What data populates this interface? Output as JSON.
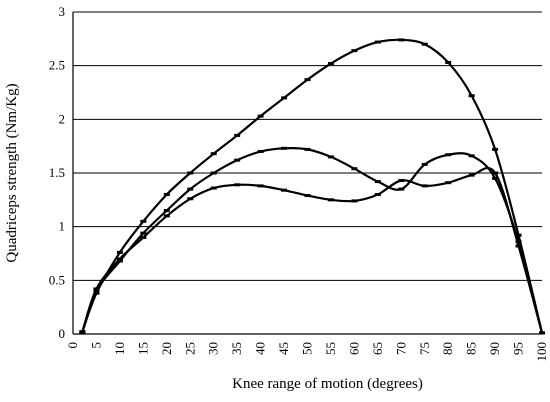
{
  "chart_data": {
    "type": "line",
    "title": "",
    "xlabel": "Knee range of motion (degrees)",
    "ylabel": "Quadriceps strength (Nm/Kg)",
    "xlim": [
      0,
      100
    ],
    "ylim": [
      0,
      3
    ],
    "grid": "horizontal",
    "x_ticks": [
      "0",
      "5",
      "10",
      "15",
      "20",
      "25",
      "30",
      "35",
      "40",
      "45",
      "50",
      "55",
      "60",
      "65",
      "70",
      "75",
      "80",
      "85",
      "90",
      "95",
      "100"
    ],
    "y_ticks": [
      "0",
      "0.5",
      "1",
      "1.5",
      "2",
      "2.5",
      "3"
    ],
    "series": [
      {
        "points": [
          [
            2,
            0.02
          ],
          [
            5,
            0.38
          ],
          [
            10,
            0.76
          ],
          [
            15,
            1.05
          ],
          [
            20,
            1.3
          ],
          [
            25,
            1.5
          ],
          [
            30,
            1.68
          ],
          [
            35,
            1.85
          ],
          [
            40,
            2.03
          ],
          [
            45,
            2.2
          ],
          [
            50,
            2.37
          ],
          [
            55,
            2.52
          ],
          [
            60,
            2.64
          ],
          [
            65,
            2.72
          ],
          [
            70,
            2.74
          ],
          [
            75,
            2.7
          ],
          [
            80,
            2.53
          ],
          [
            85,
            2.22
          ],
          [
            90,
            1.72
          ],
          [
            95,
            0.92
          ],
          [
            100,
            0.01
          ]
        ]
      },
      {
        "points": [
          [
            2,
            0.02
          ],
          [
            5,
            0.4
          ],
          [
            10,
            0.68
          ],
          [
            15,
            0.94
          ],
          [
            20,
            1.15
          ],
          [
            25,
            1.35
          ],
          [
            30,
            1.5
          ],
          [
            35,
            1.62
          ],
          [
            40,
            1.7
          ],
          [
            45,
            1.73
          ],
          [
            50,
            1.72
          ],
          [
            55,
            1.65
          ],
          [
            60,
            1.54
          ],
          [
            65,
            1.42
          ],
          [
            70,
            1.35
          ],
          [
            75,
            1.58
          ],
          [
            80,
            1.67
          ],
          [
            85,
            1.66
          ],
          [
            90,
            1.45
          ],
          [
            95,
            0.86
          ],
          [
            100,
            0.01
          ]
        ]
      },
      {
        "points": [
          [
            2,
            0.02
          ],
          [
            5,
            0.42
          ],
          [
            10,
            0.7
          ],
          [
            15,
            0.9
          ],
          [
            20,
            1.1
          ],
          [
            25,
            1.26
          ],
          [
            30,
            1.36
          ],
          [
            35,
            1.39
          ],
          [
            40,
            1.38
          ],
          [
            45,
            1.34
          ],
          [
            50,
            1.29
          ],
          [
            55,
            1.25
          ],
          [
            60,
            1.24
          ],
          [
            65,
            1.3
          ],
          [
            70,
            1.43
          ],
          [
            75,
            1.38
          ],
          [
            80,
            1.41
          ],
          [
            85,
            1.48
          ],
          [
            90,
            1.5
          ],
          [
            95,
            0.82
          ],
          [
            100,
            0.01
          ]
        ]
      }
    ]
  }
}
